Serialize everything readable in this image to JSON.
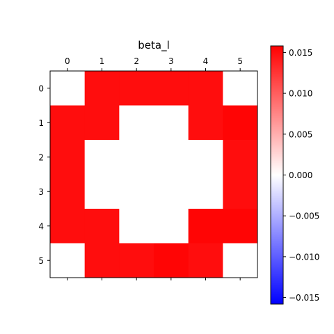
{
  "chart_data": {
    "type": "heatmap",
    "title": "beta_l",
    "x_ticks": [
      "0",
      "1",
      "2",
      "3",
      "4",
      "5"
    ],
    "y_ticks": [
      "0",
      "1",
      "2",
      "3",
      "4",
      "5"
    ],
    "values": [
      [
        0.0,
        0.015,
        0.015,
        0.015,
        0.015,
        0.0
      ],
      [
        0.015,
        0.015,
        0.0,
        0.0,
        0.015,
        0.0155
      ],
      [
        0.015,
        0.0,
        0.0,
        0.0,
        0.0,
        0.015
      ],
      [
        0.015,
        0.0,
        0.0,
        0.0,
        0.0,
        0.015
      ],
      [
        0.015,
        0.015,
        0.0,
        0.0,
        0.0155,
        0.0155
      ],
      [
        0.0,
        0.015,
        0.015,
        0.0155,
        0.015,
        0.0
      ]
    ],
    "colormap": [
      "#0000ff",
      "#ffffff",
      "#ff0000"
    ],
    "vmin": -0.0158,
    "vmax": 0.0158,
    "colorbar_ticks": [
      "−0.015",
      "−0.010",
      "−0.005",
      "0.000",
      "0.005",
      "0.010",
      "0.015"
    ],
    "colorbar_tick_values": [
      -0.015,
      -0.01,
      -0.005,
      0.0,
      0.005,
      0.01,
      0.015
    ],
    "grid": false
  }
}
